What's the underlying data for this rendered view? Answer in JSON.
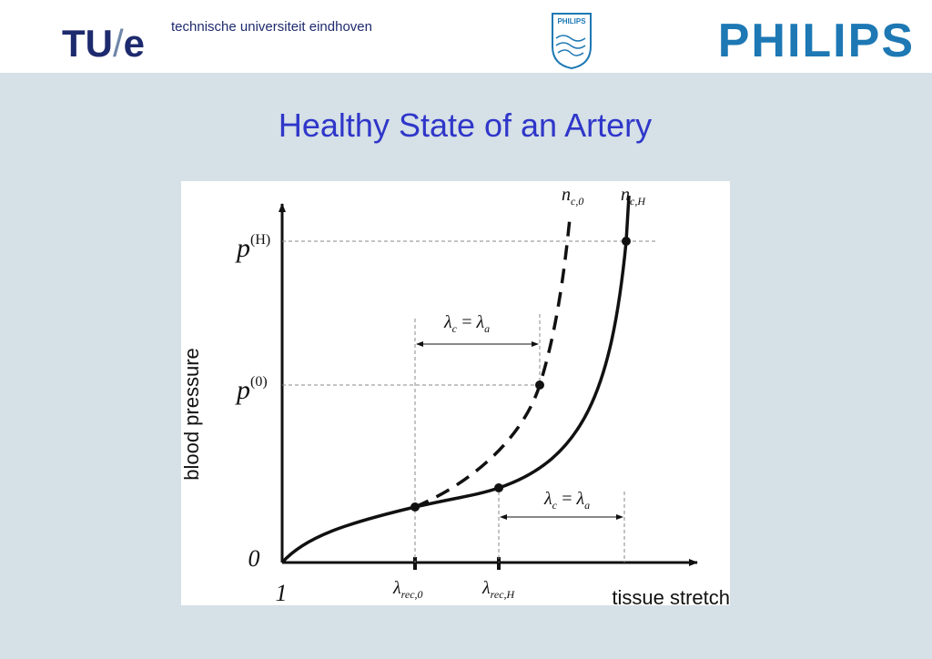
{
  "header": {
    "tue_logo": {
      "tu": "TU",
      "slash": "/",
      "e": "e"
    },
    "university": "technische universiteit eindhoven",
    "shield_text": "PHILIPS",
    "philips_logo": "PHILIPS"
  },
  "slide": {
    "title": "Healthy State of an Artery"
  },
  "figure": {
    "y_axis_label": "blood pressure",
    "x_axis_label": "tissue stretch",
    "origin_y": "0",
    "origin_x": "1",
    "pressure_labels": [
      {
        "base": "p",
        "sup": "(H)"
      },
      {
        "base": "p",
        "sup": "(0)"
      }
    ],
    "curve_labels": [
      {
        "base": "n",
        "sub": "c,0"
      },
      {
        "base": "n",
        "sub": "c,H"
      }
    ],
    "stretch_labels": [
      {
        "base": "λ",
        "sub": "rec,0"
      },
      {
        "base": "λ",
        "sub": "rec,H"
      }
    ],
    "gap_labels": [
      {
        "left": "λ",
        "left_sub": "c",
        "eq": "=",
        "right": "λ",
        "right_sub": "a"
      },
      {
        "left": "λ",
        "left_sub": "c",
        "eq": "=",
        "right": "λ",
        "right_sub": "a"
      }
    ]
  }
}
